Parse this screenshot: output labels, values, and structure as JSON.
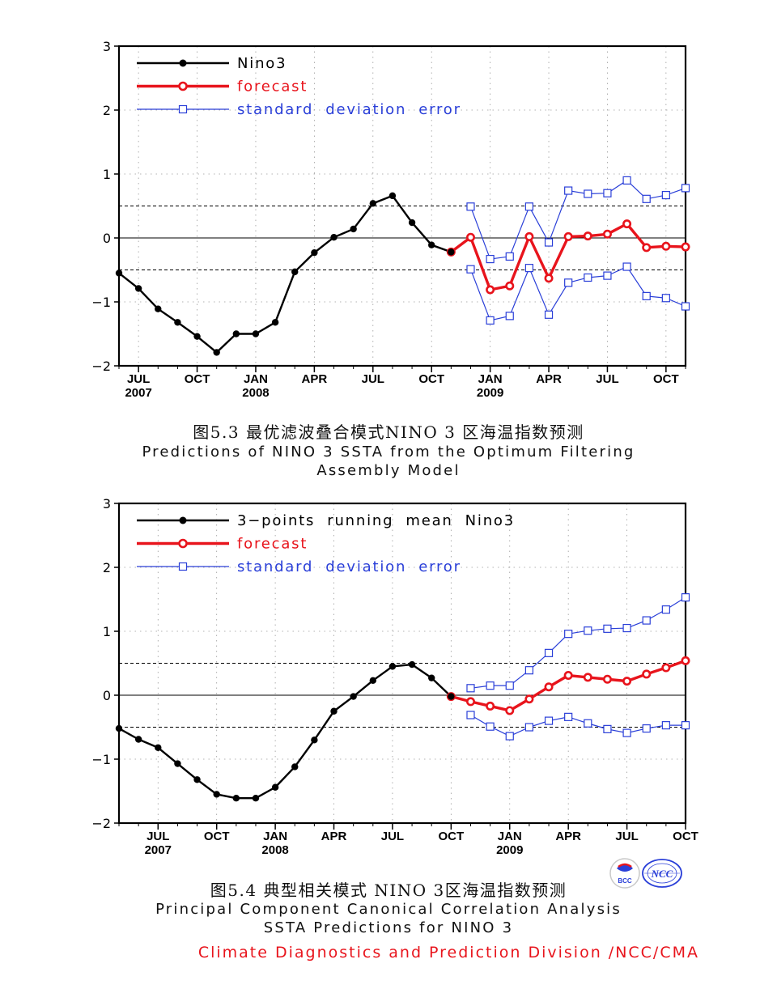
{
  "figures": [
    {
      "caption_cn": "图5.3  最优滤波叠合模式NINO 3 区海温指数预测",
      "caption_en_1": "Predictions of NINO 3 SSTA from the Optimum Filtering",
      "caption_en_2": "Assembly Model"
    },
    {
      "caption_cn": "图5.4  典型相关模式 NINO  3区海温指数预测",
      "caption_en_1": "Principal Component Canonical Correlation Analysis",
      "caption_en_2": "SSTA Predictions for NINO 3"
    }
  ],
  "footer": "Climate Diagnostics and Prediction Division /NCC/CMA",
  "logos": {
    "left": "BCC",
    "right": "NCC"
  },
  "colors": {
    "observed": "#000000",
    "forecast": "#e8141c",
    "sde": "#2a3fd8",
    "zero": "#000000"
  },
  "chart_data": [
    {
      "type": "line",
      "title": "",
      "ylim": [
        -2,
        3
      ],
      "yticks": [
        3,
        2,
        1,
        0,
        -1,
        -2
      ],
      "ytick_labels": [
        "3",
        "2",
        "1",
        "0",
        "−1",
        "−2"
      ],
      "xlim": [
        0,
        29
      ],
      "xticks": [
        {
          "x": 1,
          "label": "JUL",
          "year": "2007"
        },
        {
          "x": 4,
          "label": "OCT",
          "year": ""
        },
        {
          "x": 7,
          "label": "JAN",
          "year": "2008"
        },
        {
          "x": 10,
          "label": "APR",
          "year": ""
        },
        {
          "x": 13,
          "label": "JUL",
          "year": ""
        },
        {
          "x": 16,
          "label": "OCT",
          "year": ""
        },
        {
          "x": 19,
          "label": "JAN",
          "year": "2009"
        },
        {
          "x": 22,
          "label": "APR",
          "year": ""
        },
        {
          "x": 25,
          "label": "JUL",
          "year": ""
        },
        {
          "x": 28,
          "label": "OCT",
          "year": ""
        }
      ],
      "reference_lines": [
        0.5,
        -0.5
      ],
      "grid": true,
      "legend_position": "top-left",
      "series": [
        {
          "name": "Nino3",
          "style": "observed",
          "x": [
            0,
            1,
            2,
            3,
            4,
            5,
            6,
            7,
            8,
            9,
            10,
            11,
            12,
            13,
            14,
            15,
            16,
            17
          ],
          "y": [
            -0.55,
            -0.79,
            -1.11,
            -1.32,
            -1.54,
            -1.79,
            -1.5,
            -1.5,
            -1.32,
            -0.53,
            -0.23,
            0.01,
            0.14,
            0.54,
            0.66,
            0.24,
            -0.11,
            -0.22
          ]
        },
        {
          "name": "forecast",
          "style": "forecast",
          "x": [
            17,
            18,
            19,
            20,
            21,
            22,
            23,
            24,
            25,
            26,
            27,
            28,
            29
          ],
          "y": [
            -0.22,
            0.01,
            -0.81,
            -0.75,
            0.02,
            -0.63,
            0.02,
            0.03,
            0.06,
            0.22,
            -0.15,
            -0.13,
            -0.14
          ]
        },
        {
          "name": "standard  deviation  error",
          "style": "sde",
          "x": [
            18,
            19,
            20,
            21,
            22,
            23,
            24,
            25,
            26,
            27,
            28,
            29
          ],
          "y": [
            0.49,
            -0.33,
            -0.29,
            0.49,
            -0.07,
            0.74,
            0.69,
            0.7,
            0.9,
            0.61,
            0.67,
            0.78
          ]
        },
        {
          "name": "",
          "style": "sde",
          "legend": false,
          "x": [
            18,
            19,
            20,
            21,
            22,
            23,
            24,
            25,
            26,
            27,
            28,
            29
          ],
          "y": [
            -0.49,
            -1.29,
            -1.22,
            -0.47,
            -1.2,
            -0.7,
            -0.62,
            -0.59,
            -0.45,
            -0.91,
            -0.94,
            -1.07
          ]
        }
      ]
    },
    {
      "type": "line",
      "title": "",
      "ylim": [
        -2,
        3
      ],
      "yticks": [
        3,
        2,
        1,
        0,
        -1,
        -2
      ],
      "ytick_labels": [
        "3",
        "2",
        "1",
        "0",
        "−1",
        "−2"
      ],
      "xlim": [
        0,
        29
      ],
      "xticks": [
        {
          "x": 2,
          "label": "JUL",
          "year": "2007"
        },
        {
          "x": 5,
          "label": "OCT",
          "year": ""
        },
        {
          "x": 8,
          "label": "JAN",
          "year": "2008"
        },
        {
          "x": 11,
          "label": "APR",
          "year": ""
        },
        {
          "x": 14,
          "label": "JUL",
          "year": ""
        },
        {
          "x": 17,
          "label": "OCT",
          "year": ""
        },
        {
          "x": 20,
          "label": "JAN",
          "year": "2009"
        },
        {
          "x": 23,
          "label": "APR",
          "year": ""
        },
        {
          "x": 26,
          "label": "JUL",
          "year": ""
        },
        {
          "x": 29,
          "label": "OCT",
          "year": ""
        }
      ],
      "reference_lines": [
        0.5,
        -0.5
      ],
      "grid": true,
      "legend_position": "top-left",
      "series": [
        {
          "name": "3−points  running  mean  Nino3",
          "style": "observed",
          "x": [
            0,
            1,
            2,
            3,
            4,
            5,
            6,
            7,
            8,
            9,
            10,
            11,
            12,
            13,
            14,
            15,
            16,
            17
          ],
          "y": [
            -0.52,
            -0.69,
            -0.82,
            -1.07,
            -1.32,
            -1.55,
            -1.61,
            -1.61,
            -1.44,
            -1.12,
            -0.7,
            -0.25,
            -0.02,
            0.23,
            0.45,
            0.48,
            0.27,
            -0.02
          ]
        },
        {
          "name": "forecast",
          "style": "forecast",
          "x": [
            17,
            18,
            19,
            20,
            21,
            22,
            23,
            24,
            25,
            26,
            27,
            28,
            29
          ],
          "y": [
            -0.02,
            -0.1,
            -0.17,
            -0.24,
            -0.06,
            0.13,
            0.31,
            0.28,
            0.25,
            0.22,
            0.33,
            0.43,
            0.54
          ]
        },
        {
          "name": "standard  deviation  error",
          "style": "sde",
          "x": [
            18,
            19,
            20,
            21,
            22,
            23,
            24,
            25,
            26,
            27,
            28,
            29
          ],
          "y": [
            0.11,
            0.15,
            0.15,
            0.39,
            0.66,
            0.96,
            1.01,
            1.04,
            1.05,
            1.17,
            1.34,
            1.53
          ]
        },
        {
          "name": "",
          "style": "sde",
          "legend": false,
          "x": [
            18,
            19,
            20,
            21,
            22,
            23,
            24,
            25,
            26,
            27,
            28,
            29
          ],
          "y": [
            -0.31,
            -0.49,
            -0.64,
            -0.5,
            -0.4,
            -0.34,
            -0.44,
            -0.53,
            -0.59,
            -0.52,
            -0.47,
            -0.47
          ]
        }
      ]
    }
  ]
}
